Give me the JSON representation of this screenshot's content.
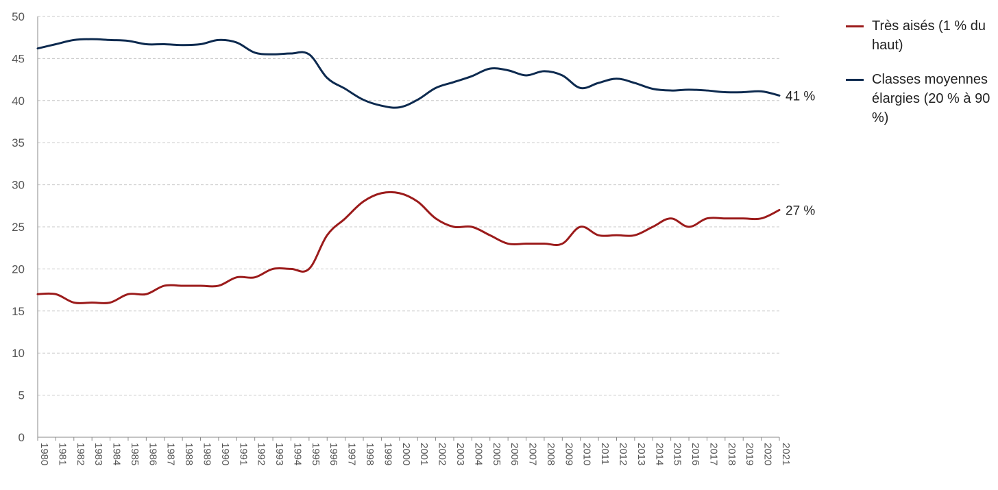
{
  "chart_data": {
    "type": "line",
    "title": "",
    "xlabel": "",
    "ylabel": "",
    "ylim": [
      0,
      50
    ],
    "yticks": [
      0,
      5,
      10,
      15,
      20,
      25,
      30,
      35,
      40,
      45,
      50
    ],
    "grid": "horizontal dashed",
    "legend_position": "right",
    "x": [
      "1980",
      "1981",
      "1982",
      "1983",
      "1984",
      "1985",
      "1986",
      "1987",
      "1988",
      "1989",
      "1990",
      "1991",
      "1992",
      "1993",
      "1994",
      "1995",
      "1996",
      "1997",
      "1998",
      "1999",
      "2000",
      "2001",
      "2002",
      "2003",
      "2004",
      "2005",
      "2006",
      "2007",
      "2008",
      "2009",
      "2010",
      "2011",
      "2012",
      "2013",
      "2014",
      "2015",
      "2016",
      "2017",
      "2018",
      "2019",
      "2020",
      "2021"
    ],
    "series": [
      {
        "name": "Très aisés (1 % du haut)",
        "color": "#9b1b1b",
        "values": [
          17,
          17,
          16,
          16,
          16,
          17,
          17,
          18,
          18,
          18,
          18,
          19,
          19,
          20,
          20,
          20,
          24,
          26,
          28,
          29,
          29,
          28,
          26,
          25,
          25,
          24,
          23,
          23,
          23,
          23,
          25,
          24,
          24,
          24,
          25,
          26,
          25,
          26,
          26,
          26,
          26,
          27
        ],
        "end_label": "27 %"
      },
      {
        "name": "Classes moyennes élargies (20 % à 90 %)",
        "color": "#0d2a4f",
        "values": [
          46.2,
          46.7,
          47.2,
          47.3,
          47.2,
          47.1,
          46.7,
          46.7,
          46.6,
          46.7,
          47.2,
          46.9,
          45.7,
          45.5,
          45.6,
          45.5,
          42.7,
          41.4,
          40.1,
          39.4,
          39.2,
          40.1,
          41.5,
          42.2,
          42.9,
          43.8,
          43.6,
          43.0,
          43.5,
          43.0,
          41.5,
          42.1,
          42.6,
          42.1,
          41.4,
          41.2,
          41.3,
          41.2,
          41.0,
          41.0,
          41.1,
          40.6
        ],
        "end_label": "41 %"
      }
    ]
  }
}
